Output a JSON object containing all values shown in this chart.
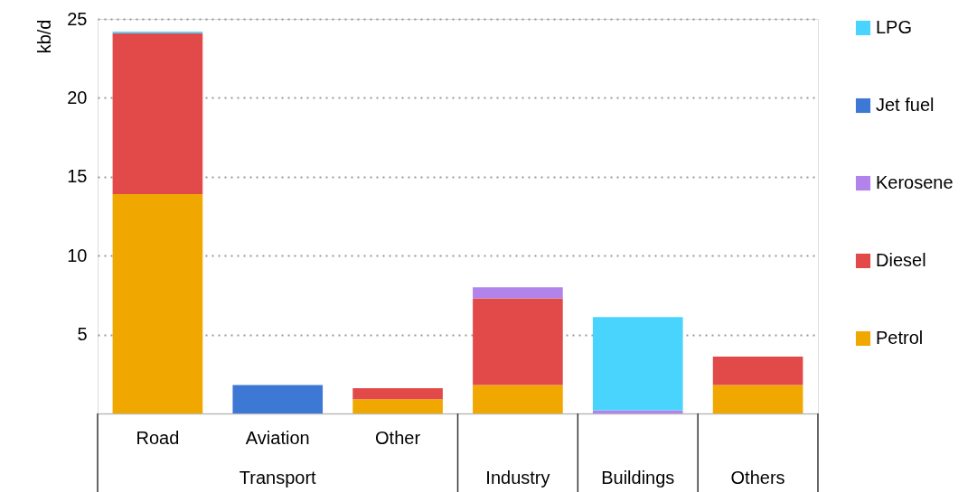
{
  "chart_data": {
    "type": "bar",
    "stacked": true,
    "ylabel": "kb/d",
    "categories": [
      "Road",
      "Aviation",
      "Other",
      "Industry",
      "Buildings",
      "Others"
    ],
    "series": [
      {
        "name": "Petrol",
        "color": "#f0a800",
        "values": [
          13.9,
          null,
          0.9,
          1.8,
          null,
          1.8
        ]
      },
      {
        "name": "Diesel",
        "color": "#e24a4a",
        "values": [
          10.2,
          null,
          0.7,
          5.5,
          null,
          1.8
        ]
      },
      {
        "name": "Kerosene",
        "color": "#b283ea",
        "values": [
          null,
          null,
          null,
          0.7,
          0.2,
          null
        ]
      },
      {
        "name": "Jet fuel",
        "color": "#3c78d4",
        "values": [
          null,
          1.8,
          null,
          null,
          null,
          null
        ]
      },
      {
        "name": "LPG",
        "color": "#48d4fc",
        "values": [
          0.1,
          null,
          null,
          null,
          5.9,
          null
        ]
      }
    ],
    "ylim": [
      0,
      25
    ],
    "yticks": [
      5,
      10,
      15,
      20,
      25
    ],
    "grid": "y",
    "legend": "right",
    "annotations": [
      "Transport"
    ]
  }
}
